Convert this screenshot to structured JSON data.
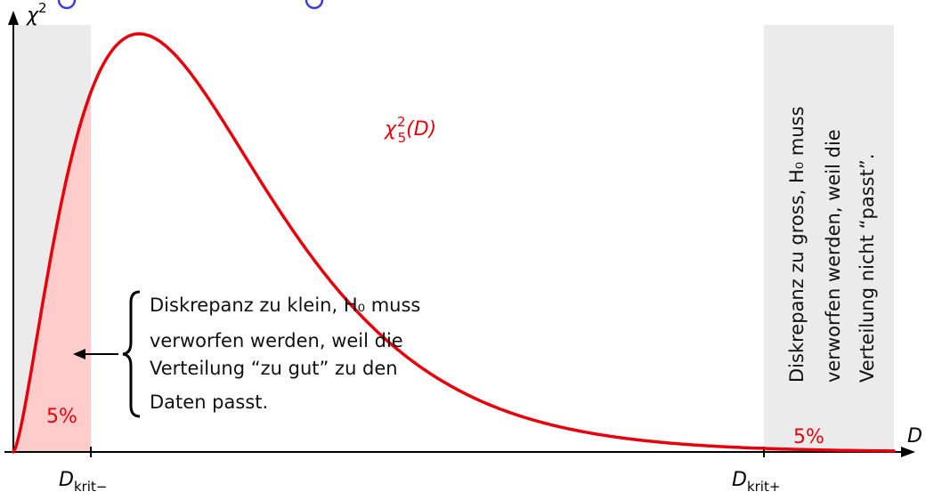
{
  "chart_data": {
    "type": "area",
    "distribution": "chi-squared",
    "degrees_of_freedom": 5,
    "x_range": [
      0,
      21
    ],
    "y_label": "χ",
    "y_label_sup": "2",
    "x_label": "D",
    "curve_label": {
      "base": "χ",
      "sup": "2",
      "sub": "5",
      "arg": "(D)"
    },
    "critical_values": [
      {
        "value": 1.85,
        "label": "D",
        "label_sub": "krit−",
        "tail": "left",
        "tail_percent": "5%"
      },
      {
        "value": 17.9,
        "label": "D",
        "label_sub": "krit+",
        "tail": "right",
        "tail_percent": "5%"
      }
    ],
    "annotations": {
      "left_note": [
        "Diskrepanz zu klein, H₀ muss",
        "verworfen werden, weil die",
        "Verteilung “zu gut” zu den",
        "Daten passt."
      ],
      "right_note": [
        "Diskrepanz zu gross, H₀ muss",
        "verworfen werden, weil die",
        "Verteilung nicht “passt”."
      ]
    },
    "colors": {
      "curve": "#e8000b",
      "tail_fill": "#ffcccc",
      "rejection_band": "#ebebeb",
      "axis": "#000000",
      "top_edge_marks": "#3b3bd6"
    }
  }
}
